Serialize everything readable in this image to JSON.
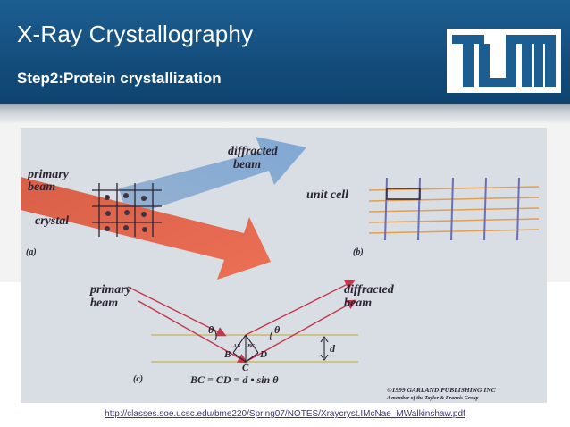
{
  "slide": {
    "title": "X-Ray Crystallography",
    "subtitle": "Step2:Protein crystallization"
  },
  "logo": {
    "icon": "tum-logo-icon",
    "color": "#1d5e91"
  },
  "figure": {
    "panel_a": {
      "label_diffracted": "diffracted",
      "label_beam_top": "beam",
      "label_primary": "primary",
      "label_beam_left": "beam",
      "label_crystal": "crystal",
      "panel_letter": "(a)"
    },
    "panel_b": {
      "label_unit_cell": "unit cell",
      "panel_letter": "(b)"
    },
    "panel_c": {
      "label_primary": "primary",
      "label_primary_beam": "beam",
      "label_diffracted": "diffracted",
      "label_diffracted_beam": "beam",
      "theta_left": "θ",
      "theta_right": "θ",
      "d_label": "d",
      "point_b": "B",
      "point_c": "C",
      "point_d": "D",
      "mini_left": "AB",
      "mini_right": "BC",
      "equation": "BC = CD = d • sin θ",
      "panel_letter": "(c)",
      "copyright_line1": "©1999 GARLAND PUBLISHING INC",
      "copyright_line2": "A member of the Taylor & Francis Group"
    }
  },
  "source_url": "http://classes.soe.ucsc.edu/bme220/Spring07/NOTES/Xraycryst.IMcNae_MWalkinshaw.pdf",
  "colors": {
    "header_blue": "#1d5e91",
    "primary_beam": "#e2573e",
    "diffracted_beam": "#6e9ed0",
    "lattice_blue": "#6b6fb4",
    "lattice_orange": "#e3a04d",
    "ray_red": "#c2394b",
    "plane_green": "#c8ba6d"
  }
}
